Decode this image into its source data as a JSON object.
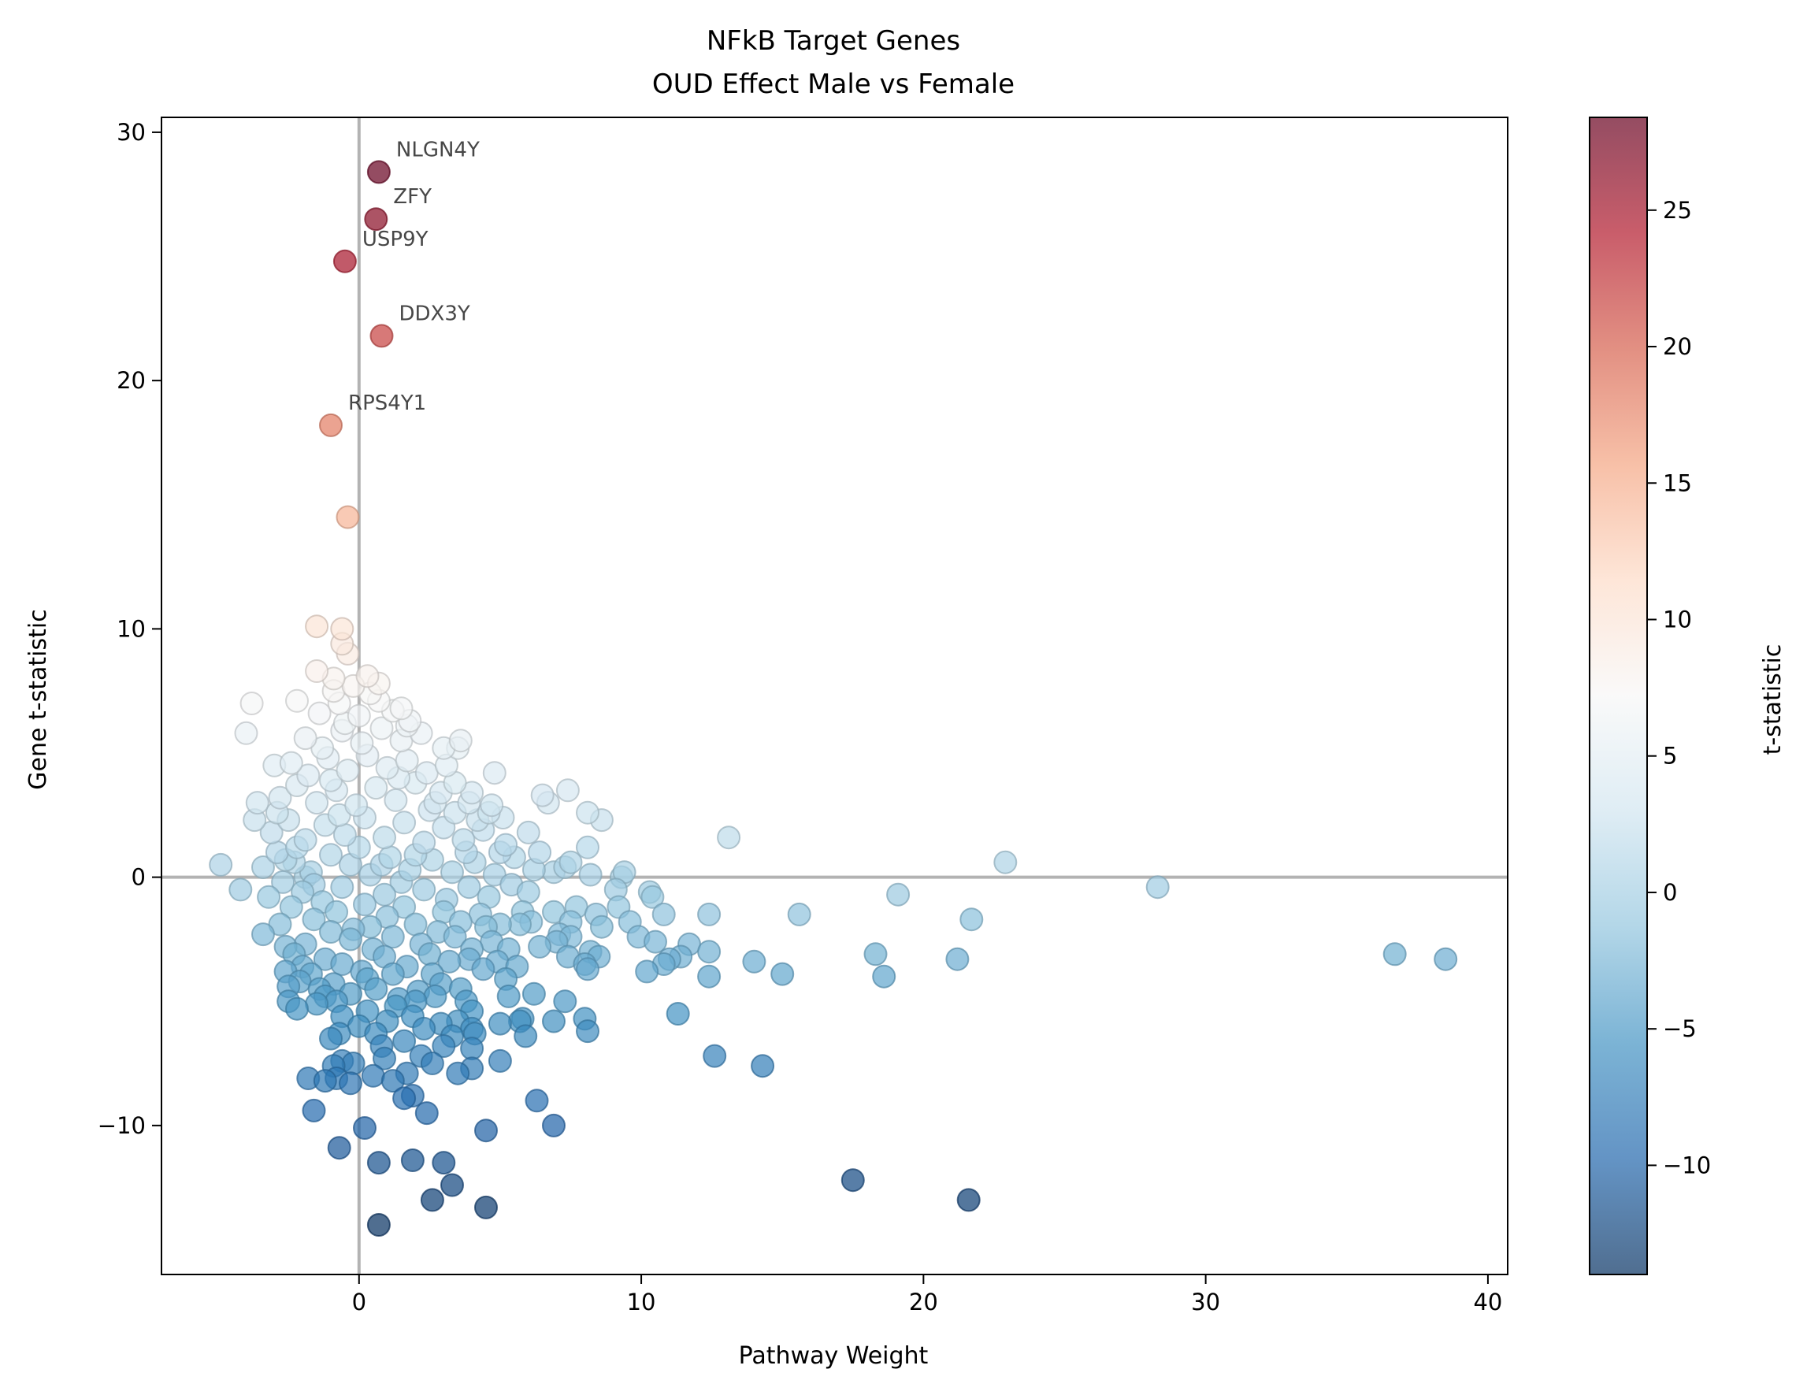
{
  "chart_data": {
    "type": "scatter",
    "title": "NFkB Target Genes",
    "subtitle": "OUD Effect Male vs Female",
    "xlabel": "Pathway Weight",
    "ylabel": "Gene t-statistic",
    "xlim": [
      -7.0,
      40.7
    ],
    "ylim": [
      -16.0,
      30.6
    ],
    "x_ticks": [
      0,
      10,
      20,
      30,
      40
    ],
    "x_tick_labels": [
      "0",
      "10",
      "20",
      "30",
      "40"
    ],
    "y_ticks": [
      -10,
      0,
      10,
      20,
      30
    ],
    "y_tick_labels": [
      "−10",
      "0",
      "10",
      "20",
      "30"
    ],
    "reference_lines": {
      "x": 0,
      "y": 0
    },
    "grid": false,
    "colorbar": {
      "label": "t-statistic",
      "colormap": "RdBu_r",
      "range": [
        -14.0,
        28.4
      ],
      "ticks": [
        -10,
        -5,
        0,
        5,
        10,
        15,
        20,
        25
      ],
      "tick_labels": [
        "−10",
        "−5",
        "0",
        "5",
        "10",
        "15",
        "20",
        "25"
      ]
    },
    "annotations": [
      {
        "text": "NLGN4Y",
        "x": 0.7,
        "y": 28.4
      },
      {
        "text": "ZFY",
        "x": 0.6,
        "y": 26.5
      },
      {
        "text": "USP9Y",
        "x": -0.5,
        "y": 24.8
      },
      {
        "text": "DDX3Y",
        "x": 0.8,
        "y": 21.8
      },
      {
        "text": "RPS4Y1",
        "x": -1.0,
        "y": 18.2
      }
    ],
    "points": [
      [
        0.7,
        28.4
      ],
      [
        0.6,
        26.5
      ],
      [
        -0.5,
        24.8
      ],
      [
        0.8,
        21.8
      ],
      [
        -1.0,
        18.2
      ],
      [
        -0.4,
        14.5
      ],
      [
        -1.5,
        10.1
      ],
      [
        -0.6,
        10.0
      ],
      [
        -0.6,
        9.4
      ],
      [
        -0.4,
        9.0
      ],
      [
        -1.5,
        8.3
      ],
      [
        0.3,
        8.1
      ],
      [
        0.7,
        7.8
      ],
      [
        -0.9,
        8.0
      ],
      [
        -3.8,
        7.0
      ],
      [
        -4.0,
        5.8
      ],
      [
        -2.2,
        7.1
      ],
      [
        1.5,
        6.8
      ],
      [
        1.7,
        6.1
      ],
      [
        -3.0,
        4.5
      ],
      [
        -3.6,
        3.0
      ],
      [
        -3.7,
        2.3
      ],
      [
        -4.9,
        0.5
      ],
      [
        -4.2,
        -0.5
      ],
      [
        -3.4,
        -2.3
      ],
      [
        -2.6,
        -3.8
      ],
      [
        -2.5,
        -4.4
      ],
      [
        -2.5,
        -5.0
      ],
      [
        -2.2,
        -5.3
      ],
      [
        3.6,
        5.5
      ],
      [
        3.5,
        5.2
      ],
      [
        3.0,
        5.2
      ],
      [
        3.4,
        3.8
      ],
      [
        4.0,
        3.4
      ],
      [
        3.9,
        3.0
      ],
      [
        4.8,
        4.2
      ],
      [
        4.6,
        2.6
      ],
      [
        5.1,
        2.4
      ],
      [
        6.0,
        1.8
      ],
      [
        6.4,
        1.0
      ],
      [
        6.5,
        3.3
      ],
      [
        6.7,
        3.0
      ],
      [
        7.4,
        3.5
      ],
      [
        8.1,
        2.6
      ],
      [
        8.6,
        2.3
      ],
      [
        8.1,
        1.2
      ],
      [
        7.5,
        0.6
      ],
      [
        6.9,
        0.2
      ],
      [
        7.3,
        0.4
      ],
      [
        8.2,
        0.1
      ],
      [
        9.3,
        0.0
      ],
      [
        9.4,
        0.2
      ],
      [
        9.1,
        -0.5
      ],
      [
        10.4,
        -0.8
      ],
      [
        10.3,
        -0.6
      ],
      [
        10.8,
        -1.5
      ],
      [
        9.6,
        -1.8
      ],
      [
        9.2,
        -1.2
      ],
      [
        8.4,
        -1.5
      ],
      [
        7.7,
        -1.2
      ],
      [
        6.9,
        -1.4
      ],
      [
        7.5,
        -1.8
      ],
      [
        8.6,
        -2.0
      ],
      [
        9.9,
        -2.4
      ],
      [
        10.5,
        -2.6
      ],
      [
        6.1,
        -1.8
      ],
      [
        5.7,
        -1.9
      ],
      [
        6.4,
        -2.8
      ],
      [
        7.0,
        -2.6
      ],
      [
        7.1,
        -2.3
      ],
      [
        7.5,
        -2.4
      ],
      [
        7.4,
        -3.2
      ],
      [
        8.0,
        -3.5
      ],
      [
        8.2,
        -3.0
      ],
      [
        8.5,
        -3.2
      ],
      [
        8.1,
        -3.7
      ],
      [
        10.2,
        -3.8
      ],
      [
        11.0,
        -3.3
      ],
      [
        10.8,
        -3.5
      ],
      [
        11.4,
        -3.2
      ],
      [
        11.7,
        -2.7
      ],
      [
        12.4,
        -1.5
      ],
      [
        12.4,
        -3.0
      ],
      [
        12.4,
        -4.0
      ],
      [
        11.3,
        -5.5
      ],
      [
        12.6,
        -7.2
      ],
      [
        14.3,
        -7.6
      ],
      [
        13.1,
        1.6
      ],
      [
        15.6,
        -1.5
      ],
      [
        14.0,
        -3.4
      ],
      [
        15.0,
        -3.9
      ],
      [
        19.1,
        -0.7
      ],
      [
        18.3,
        -3.1
      ],
      [
        18.6,
        -4.0
      ],
      [
        21.7,
        -1.7
      ],
      [
        21.2,
        -3.3
      ],
      [
        22.9,
        0.6
      ],
      [
        28.3,
        -0.4
      ],
      [
        36.7,
        -3.1
      ],
      [
        38.5,
        -3.3
      ],
      [
        6.2,
        -4.7
      ],
      [
        7.3,
        -5.0
      ],
      [
        6.9,
        -5.8
      ],
      [
        8.0,
        -5.7
      ],
      [
        8.1,
        -6.2
      ],
      [
        5.8,
        -5.7
      ],
      [
        5.9,
        -6.4
      ],
      [
        5.7,
        -5.8
      ],
      [
        5.3,
        -4.8
      ],
      [
        5.0,
        -5.9
      ],
      [
        5.0,
        -7.4
      ],
      [
        6.3,
        -9.0
      ],
      [
        6.9,
        -10.0
      ],
      [
        4.5,
        -10.2
      ],
      [
        17.5,
        -12.2
      ],
      [
        21.6,
        -13.0
      ],
      [
        4.5,
        -13.3
      ],
      [
        0.7,
        -14.0
      ],
      [
        2.6,
        -13.0
      ],
      [
        3.3,
        -12.4
      ],
      [
        3.0,
        -11.5
      ],
      [
        1.9,
        -11.4
      ],
      [
        0.7,
        -11.5
      ],
      [
        -0.7,
        -10.9
      ],
      [
        0.2,
        -10.1
      ],
      [
        2.4,
        -9.5
      ],
      [
        1.6,
        -8.9
      ],
      [
        1.9,
        -8.8
      ],
      [
        -1.6,
        -9.4
      ],
      [
        -1.8,
        -8.1
      ],
      [
        -1.2,
        -8.2
      ],
      [
        -0.8,
        -8.1
      ],
      [
        -0.3,
        -8.3
      ],
      [
        0.5,
        -8.0
      ],
      [
        1.2,
        -8.2
      ],
      [
        -0.6,
        -7.4
      ],
      [
        -0.9,
        -7.6
      ],
      [
        -0.2,
        -7.5
      ],
      [
        0.9,
        -7.3
      ],
      [
        1.7,
        -7.9
      ],
      [
        2.2,
        -7.2
      ],
      [
        2.6,
        -7.5
      ],
      [
        3.5,
        -7.9
      ],
      [
        4.0,
        -7.7
      ],
      [
        4.0,
        -6.9
      ],
      [
        4.0,
        -6.1
      ],
      [
        3.3,
        -6.4
      ],
      [
        3.5,
        -5.8
      ],
      [
        4.0,
        -5.4
      ],
      [
        -0.7,
        -6.3
      ],
      [
        -1.0,
        -6.5
      ],
      [
        1.6,
        -6.6
      ],
      [
        0.8,
        -6.8
      ],
      [
        4.1,
        -6.3
      ],
      [
        -1.5,
        -5.1
      ],
      [
        -1.2,
        -4.8
      ],
      [
        -0.6,
        -5.6
      ],
      [
        0.3,
        -5.4
      ],
      [
        1.0,
        -5.8
      ],
      [
        1.9,
        -5.6
      ],
      [
        2.3,
        -6.1
      ],
      [
        2.9,
        -5.9
      ],
      [
        3.8,
        -5.0
      ],
      [
        -2.1,
        -4.2
      ],
      [
        -1.7,
        -3.9
      ],
      [
        -0.9,
        -4.3
      ],
      [
        -0.3,
        -4.7
      ],
      [
        0.6,
        -4.5
      ],
      [
        1.4,
        -4.9
      ],
      [
        2.1,
        -4.6
      ],
      [
        2.9,
        -4.3
      ],
      [
        3.6,
        -4.5
      ],
      [
        4.4,
        -3.7
      ],
      [
        4.9,
        -3.4
      ],
      [
        5.6,
        -3.6
      ],
      [
        -2.3,
        -3.1
      ],
      [
        -1.9,
        -2.7
      ],
      [
        -1.2,
        -3.3
      ],
      [
        -0.6,
        -3.5
      ],
      [
        0.1,
        -3.8
      ],
      [
        0.9,
        -3.2
      ],
      [
        1.7,
        -3.6
      ],
      [
        2.5,
        -3.1
      ],
      [
        3.2,
        -3.4
      ],
      [
        4.0,
        -2.9
      ],
      [
        4.7,
        -2.6
      ],
      [
        5.3,
        -2.9
      ],
      [
        -2.8,
        -1.9
      ],
      [
        -2.4,
        -1.2
      ],
      [
        -1.6,
        -1.7
      ],
      [
        -1.0,
        -2.2
      ],
      [
        -0.3,
        -2.5
      ],
      [
        0.4,
        -2.0
      ],
      [
        1.2,
        -2.4
      ],
      [
        2.0,
        -1.9
      ],
      [
        2.8,
        -2.2
      ],
      [
        3.6,
        -1.8
      ],
      [
        4.3,
        -1.5
      ],
      [
        5.0,
        -1.9
      ],
      [
        5.8,
        -1.4
      ],
      [
        -3.2,
        -0.8
      ],
      [
        -2.7,
        -0.2
      ],
      [
        -2.0,
        -0.6
      ],
      [
        -1.3,
        -1.0
      ],
      [
        -0.6,
        -0.4
      ],
      [
        0.2,
        -1.1
      ],
      [
        0.9,
        -0.7
      ],
      [
        1.6,
        -1.2
      ],
      [
        2.3,
        -0.5
      ],
      [
        3.1,
        -0.9
      ],
      [
        3.9,
        -0.4
      ],
      [
        4.6,
        -0.8
      ],
      [
        5.4,
        -0.3
      ],
      [
        6.0,
        -0.6
      ],
      [
        -3.4,
        0.4
      ],
      [
        -2.9,
        1.0
      ],
      [
        -2.3,
        0.6
      ],
      [
        -1.7,
        0.2
      ],
      [
        -1.0,
        0.9
      ],
      [
        -0.3,
        0.5
      ],
      [
        0.4,
        0.1
      ],
      [
        1.1,
        0.8
      ],
      [
        1.8,
        0.3
      ],
      [
        2.6,
        0.7
      ],
      [
        3.3,
        0.2
      ],
      [
        4.1,
        0.6
      ],
      [
        4.8,
        0.1
      ],
      [
        5.5,
        0.8
      ],
      [
        6.2,
        0.3
      ],
      [
        -3.1,
        1.8
      ],
      [
        -2.5,
        2.3
      ],
      [
        -1.9,
        1.5
      ],
      [
        -1.2,
        2.1
      ],
      [
        -0.5,
        1.7
      ],
      [
        0.2,
        2.4
      ],
      [
        0.9,
        1.6
      ],
      [
        1.6,
        2.2
      ],
      [
        2.3,
        1.4
      ],
      [
        3.0,
        2.0
      ],
      [
        3.7,
        1.5
      ],
      [
        4.4,
        1.9
      ],
      [
        5.2,
        1.3
      ],
      [
        -2.8,
        3.2
      ],
      [
        -2.2,
        3.7
      ],
      [
        -1.5,
        3.0
      ],
      [
        -0.8,
        3.5
      ],
      [
        -0.1,
        2.9
      ],
      [
        0.6,
        3.6
      ],
      [
        1.3,
        3.1
      ],
      [
        2.0,
        3.8
      ],
      [
        2.7,
        3.0
      ],
      [
        3.4,
        2.6
      ],
      [
        -2.4,
        4.6
      ],
      [
        -1.8,
        4.1
      ],
      [
        -1.1,
        4.8
      ],
      [
        -0.4,
        4.3
      ],
      [
        0.3,
        4.9
      ],
      [
        1.0,
        4.4
      ],
      [
        1.7,
        4.7
      ],
      [
        2.4,
        4.2
      ],
      [
        3.1,
        4.5
      ],
      [
        -1.9,
        5.6
      ],
      [
        -1.3,
        5.2
      ],
      [
        -0.6,
        5.9
      ],
      [
        0.1,
        5.4
      ],
      [
        0.8,
        6.0
      ],
      [
        1.5,
        5.5
      ],
      [
        2.2,
        5.8
      ],
      [
        -1.4,
        6.6
      ],
      [
        -0.7,
        7.0
      ],
      [
        0.0,
        6.5
      ],
      [
        0.7,
        7.1
      ],
      [
        1.2,
        6.7
      ],
      [
        -0.9,
        7.5
      ],
      [
        -0.2,
        7.7
      ],
      [
        0.4,
        7.4
      ],
      [
        -2.9,
        2.6
      ],
      [
        -2.6,
        -2.8
      ],
      [
        -2.0,
        -3.6
      ],
      [
        -1.4,
        -4.5
      ],
      [
        -0.8,
        -5.0
      ],
      [
        0.0,
        -6.0
      ],
      [
        0.6,
        -6.3
      ],
      [
        1.3,
        -5.2
      ],
      [
        2.0,
        -5.0
      ],
      [
        2.7,
        -4.8
      ],
      [
        3.0,
        -6.8
      ],
      [
        -1.9,
        0.0
      ],
      [
        -0.8,
        -1.4
      ],
      [
        0.5,
        -2.9
      ],
      [
        1.5,
        -0.2
      ],
      [
        2.5,
        2.7
      ],
      [
        -1.0,
        3.9
      ],
      [
        0.0,
        1.2
      ],
      [
        1.0,
        -1.6
      ],
      [
        2.2,
        -2.7
      ],
      [
        3.4,
        -2.4
      ],
      [
        4.5,
        -2.0
      ],
      [
        5.2,
        -4.1
      ],
      [
        3.8,
        1.0
      ],
      [
        4.7,
        2.9
      ],
      [
        1.8,
        6.3
      ],
      [
        -0.5,
        6.2
      ],
      [
        -2.2,
        1.2
      ],
      [
        -1.6,
        -0.3
      ],
      [
        0.3,
        -4.1
      ],
      [
        1.2,
        -3.9
      ],
      [
        2.6,
        -3.9
      ],
      [
        3.9,
        -3.3
      ],
      [
        -0.2,
        -2.1
      ],
      [
        0.8,
        0.5
      ],
      [
        2.0,
        0.9
      ],
      [
        3.0,
        -1.4
      ],
      [
        5.0,
        1.0
      ],
      [
        -2.6,
        0.7
      ],
      [
        -0.7,
        2.5
      ],
      [
        1.4,
        4.0
      ],
      [
        2.9,
        3.4
      ],
      [
        4.2,
        2.3
      ]
    ]
  }
}
